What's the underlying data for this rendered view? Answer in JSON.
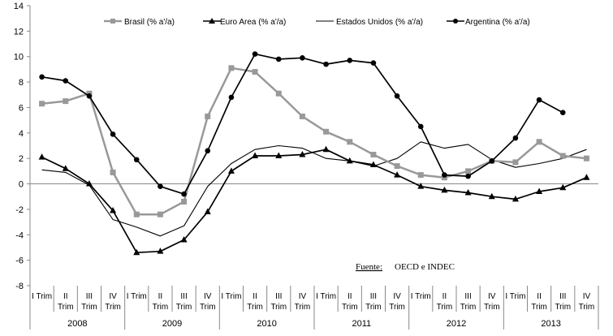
{
  "chart_data": {
    "type": "line",
    "ylim": [
      -8,
      14
    ],
    "yticks": [
      -8,
      -6,
      -4,
      -2,
      0,
      2,
      4,
      6,
      8,
      10,
      12,
      14
    ],
    "categories": [
      "I Trim 2008",
      "II Trim 2008",
      "III Trim 2008",
      "IV Trim 2008",
      "I Trim 2009",
      "II Trim 2009",
      "III Trim 2009",
      "IV Trim 2009",
      "I Trim 2010",
      "II Trim 2010",
      "III Trim 2010",
      "IV Trim 2010",
      "I Trim 2011",
      "II Trim 2011",
      "III Trim 2011",
      "IV Trim 2011",
      "I Trim 2012",
      "II Trim 2012",
      "III Trim 2012",
      "IV Trim 2012",
      "I Trim 2013",
      "II Trim 2013",
      "III Trim 2013",
      "IV Trim 2013"
    ],
    "quarter_labels": [
      "I Trim",
      "II Trim",
      "III Trim",
      "IV Trim"
    ],
    "years": [
      "2008",
      "2009",
      "2010",
      "2011",
      "2012",
      "2013"
    ],
    "legend_position": "top",
    "grid": false,
    "source_label": "Fuente:",
    "source_text": "OECD e INDEC",
    "series": [
      {
        "name": "Brasil (% a'/a)",
        "color": "#999999",
        "marker": "square",
        "values": [
          6.3,
          6.5,
          7.1,
          0.9,
          -2.4,
          -2.4,
          -1.4,
          5.3,
          9.1,
          8.8,
          7.1,
          5.3,
          4.1,
          3.3,
          2.3,
          1.4,
          0.7,
          0.5,
          1.0,
          1.8,
          1.7,
          3.3,
          2.2,
          2.0
        ]
      },
      {
        "name": "Euro Area (% a'/a)",
        "color": "#000000",
        "marker": "triangle",
        "values": [
          2.1,
          1.2,
          0.0,
          -2.1,
          -5.4,
          -5.3,
          -4.4,
          -2.2,
          1.0,
          2.2,
          2.2,
          2.3,
          2.7,
          1.8,
          1.5,
          0.7,
          -0.2,
          -0.5,
          -0.7,
          -1.0,
          -1.2,
          -0.6,
          -0.3,
          0.5
        ]
      },
      {
        "name": "Estados Unidos (% a'/a)",
        "color": "#000000",
        "marker": "none",
        "values": [
          1.1,
          0.9,
          -0.1,
          -2.8,
          -3.4,
          -4.1,
          -3.3,
          -0.2,
          1.6,
          2.7,
          3.0,
          2.8,
          2.0,
          1.8,
          1.4,
          2.0,
          3.3,
          2.8,
          3.1,
          1.9,
          1.3,
          1.6,
          2.0,
          2.7
        ]
      },
      {
        "name": "Argentina (% a'/a)",
        "color": "#000000",
        "marker": "circle",
        "values": [
          8.4,
          8.1,
          6.9,
          3.9,
          1.9,
          -0.2,
          -0.8,
          2.6,
          6.8,
          10.2,
          9.8,
          9.9,
          9.4,
          9.7,
          9.5,
          6.9,
          4.5,
          0.7,
          0.6,
          1.8,
          3.6,
          6.6,
          5.6,
          null
        ]
      }
    ]
  }
}
